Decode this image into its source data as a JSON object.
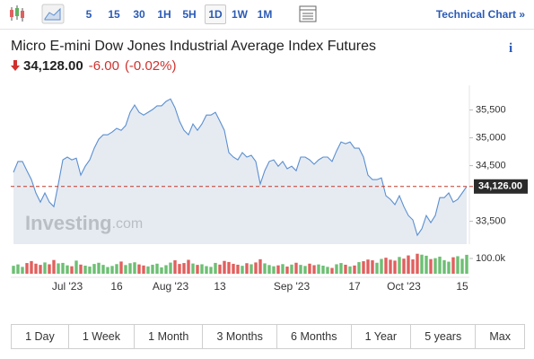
{
  "toolbar": {
    "intervals": [
      "5",
      "15",
      "30",
      "1H",
      "5H",
      "1D",
      "1W",
      "1M"
    ],
    "selected": "1D",
    "technical_chart": "Technical Chart »"
  },
  "header": {
    "title": "Micro E-mini Dow Jones Industrial Average Index Futures",
    "info": "i",
    "price": "34,128.00",
    "change": "-6.00",
    "change_percent": "(-0.02%)"
  },
  "chart_data": {
    "type": "area",
    "color": "#5b8fd0",
    "fill": "#e6ebf2",
    "categories": [
      null,
      null,
      null,
      null,
      null,
      null,
      null,
      null,
      null,
      null,
      null,
      null,
      "Jul '23",
      null,
      null,
      null,
      null,
      null,
      null,
      null,
      null,
      null,
      null,
      "16",
      null,
      null,
      null,
      null,
      null,
      null,
      null,
      null,
      null,
      null,
      null,
      "Aug '23",
      null,
      null,
      null,
      null,
      null,
      null,
      null,
      null,
      null,
      null,
      "13",
      null,
      null,
      null,
      null,
      null,
      null,
      null,
      null,
      null,
      null,
      null,
      null,
      null,
      null,
      null,
      "Sep '23",
      null,
      null,
      null,
      null,
      null,
      null,
      null,
      null,
      null,
      null,
      null,
      null,
      null,
      "17",
      null,
      null,
      null,
      null,
      null,
      null,
      null,
      null,
      null,
      null,
      "Oct '23",
      null,
      null,
      null,
      null,
      null,
      null,
      null,
      null,
      null,
      null,
      null,
      null,
      "15",
      null
    ],
    "values": [
      34380,
      34575,
      34575,
      34410,
      34250,
      34010,
      33845,
      34010,
      33845,
      33765,
      34170,
      34605,
      34655,
      34605,
      34635,
      34330,
      34490,
      34605,
      34815,
      34975,
      35055,
      35055,
      35105,
      35170,
      35135,
      35220,
      35460,
      35590,
      35460,
      35410,
      35460,
      35510,
      35575,
      35575,
      35655,
      35700,
      35540,
      35300,
      35135,
      35055,
      35250,
      35135,
      35250,
      35410,
      35410,
      35460,
      35300,
      35135,
      34735,
      34655,
      34605,
      34735,
      34655,
      34685,
      34575,
      34170,
      34410,
      34575,
      34605,
      34490,
      34575,
      34445,
      34490,
      34410,
      34655,
      34655,
      34605,
      34525,
      34605,
      34655,
      34655,
      34575,
      34765,
      34925,
      34895,
      34925,
      34815,
      34815,
      34655,
      34330,
      34250,
      34250,
      34280,
      33960,
      33895,
      33800,
      33960,
      33765,
      33605,
      33525,
      33250,
      33365,
      33605,
      33475,
      33605,
      33925,
      33925,
      34010,
      33845,
      33895,
      34010,
      34126
    ],
    "ylim": [
      33090,
      35945
    ],
    "yticks": [
      {
        "value": 33500,
        "label": "33,500"
      },
      {
        "value": 34500,
        "label": "34,500"
      },
      {
        "value": 35000,
        "label": "35,000"
      },
      {
        "value": 35500,
        "label": "35,500"
      }
    ],
    "last_price": {
      "value": 34126,
      "label": "34,126.00",
      "color": "#c0392b"
    },
    "watermark": {
      "brand": "Investing",
      "suffix": ".com"
    },
    "volume": {
      "up_color": "#6dbf73",
      "down_color": "#e0605e",
      "values": [
        52000,
        61000,
        45000,
        70000,
        83000,
        66000,
        58000,
        74000,
        62000,
        90000,
        68000,
        71000,
        55000,
        49000,
        86000,
        60000,
        53000,
        47000,
        64000,
        72000,
        58000,
        44000,
        51000,
        63000,
        80000,
        57000,
        69000,
        75000,
        61000,
        54000,
        48000,
        59000,
        66000,
        42000,
        56000,
        73000,
        88000,
        64000,
        70000,
        91000,
        67000,
        58000,
        62000,
        50000,
        45000,
        71000,
        60000,
        84000,
        77000,
        65000,
        59000,
        52000,
        69000,
        62000,
        74000,
        95000,
        68000,
        57000,
        49000,
        55000,
        63000,
        47000,
        60000,
        72000,
        58000,
        51000,
        66000,
        56000,
        61000,
        53000,
        45000,
        38000,
        62000,
        70000,
        59000,
        48000,
        54000,
        76000,
        82000,
        93000,
        88000,
        72000,
        97000,
        105000,
        92000,
        86000,
        110000,
        99000,
        120000,
        94000,
        131000,
        125000,
        118000,
        96000,
        102000,
        112000,
        89000,
        79000,
        108000,
        115000,
        98000,
        124000
      ],
      "ylim": [
        0,
        147000
      ],
      "yticks": [
        {
          "value": 100000,
          "label": "100.0k"
        }
      ]
    }
  },
  "ranges": [
    "1 Day",
    "1 Week",
    "1 Month",
    "3 Months",
    "6 Months",
    "1 Year",
    "5 years",
    "Max"
  ]
}
